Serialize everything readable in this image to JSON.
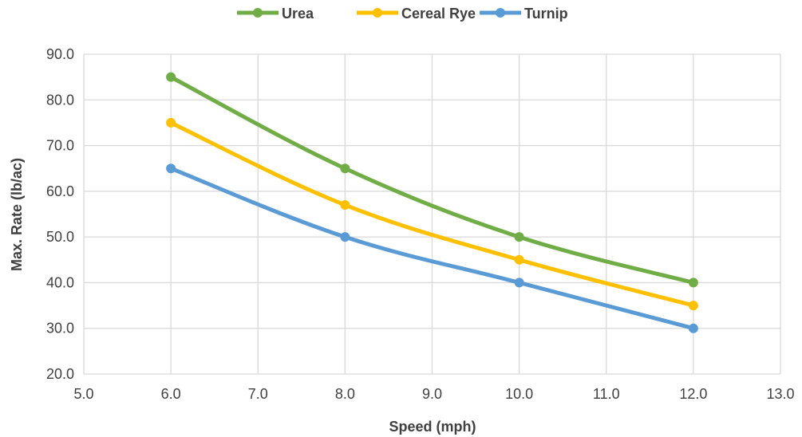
{
  "chart_data": {
    "type": "line",
    "title": "",
    "xlabel": "Speed (mph)",
    "ylabel": "Max. Rate (lb/ac)",
    "xlim": [
      5.0,
      13.0
    ],
    "ylim": [
      20.0,
      90.0
    ],
    "xticks": [
      "5.0",
      "6.0",
      "7.0",
      "8.0",
      "9.0",
      "10.0",
      "11.0",
      "12.0",
      "13.0"
    ],
    "yticks": [
      "20.0",
      "30.0",
      "40.0",
      "50.0",
      "60.0",
      "70.0",
      "80.0",
      "90.0"
    ],
    "grid": true,
    "legend_position": "top",
    "x": [
      6.0,
      8.0,
      10.0,
      12.0
    ],
    "series": [
      {
        "name": "Urea",
        "color": "#70AD47",
        "values": [
          85,
          65,
          50,
          40
        ]
      },
      {
        "name": "Cereal Rye",
        "color": "#FFC000",
        "values": [
          75,
          57,
          45,
          35
        ]
      },
      {
        "name": "Turnip",
        "color": "#5B9BD5",
        "values": [
          65,
          50,
          40,
          30
        ]
      }
    ]
  }
}
